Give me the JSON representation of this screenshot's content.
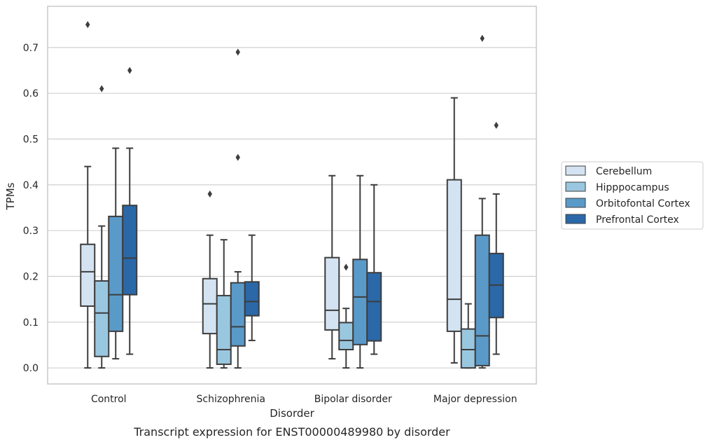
{
  "chart_data": {
    "type": "boxplot",
    "title": "Transcript expression for ENST00000489980 by disorder",
    "xlabel": "Disorder",
    "ylabel": "TPMs",
    "ylim": [
      -0.035,
      0.79
    ],
    "yticks": [
      "0.0",
      "0.1",
      "0.2",
      "0.3",
      "0.4",
      "0.5",
      "0.6",
      "0.7"
    ],
    "grid": "horizontal",
    "legend_position": "right",
    "categories": [
      "Control",
      "Schizophrenia",
      "Bipolar disorder",
      "Major depression"
    ],
    "series": [
      {
        "name": "Cerebellum",
        "color": "#d3e3f1",
        "boxes": [
          {
            "whislo": 0.0,
            "q1": 0.135,
            "median": 0.21,
            "q3": 0.27,
            "whishi": 0.44,
            "fliers": [
              0.75
            ]
          },
          {
            "whislo": 0.0,
            "q1": 0.075,
            "median": 0.14,
            "q3": 0.195,
            "whishi": 0.29,
            "fliers": [
              0.38
            ]
          },
          {
            "whislo": 0.02,
            "q1": 0.083,
            "median": 0.126,
            "q3": 0.241,
            "whishi": 0.42,
            "fliers": []
          },
          {
            "whislo": 0.011,
            "q1": 0.08,
            "median": 0.15,
            "q3": 0.411,
            "whishi": 0.59,
            "fliers": []
          }
        ]
      },
      {
        "name": "Hipppocampus",
        "color": "#9ac7e0",
        "boxes": [
          {
            "whislo": 0.0,
            "q1": 0.025,
            "median": 0.12,
            "q3": 0.19,
            "whishi": 0.31,
            "fliers": [
              0.61
            ]
          },
          {
            "whislo": 0.0,
            "q1": 0.008,
            "median": 0.04,
            "q3": 0.158,
            "whishi": 0.28,
            "fliers": []
          },
          {
            "whislo": 0.0,
            "q1": 0.04,
            "median": 0.06,
            "q3": 0.099,
            "whishi": 0.13,
            "fliers": [
              0.22
            ]
          },
          {
            "whislo": 0.0,
            "q1": 0.0,
            "median": 0.04,
            "q3": 0.085,
            "whishi": 0.14,
            "fliers": []
          }
        ]
      },
      {
        "name": "Orbitofontal Cortex",
        "color": "#5a9ac9",
        "boxes": [
          {
            "whislo": 0.02,
            "q1": 0.08,
            "median": 0.16,
            "q3": 0.331,
            "whishi": 0.48,
            "fliers": []
          },
          {
            "whislo": 0.0,
            "q1": 0.048,
            "median": 0.09,
            "q3": 0.186,
            "whishi": 0.21,
            "fliers": [
              0.46,
              0.69
            ]
          },
          {
            "whislo": 0.0,
            "q1": 0.051,
            "median": 0.155,
            "q3": 0.237,
            "whishi": 0.42,
            "fliers": []
          },
          {
            "whislo": 0.0,
            "q1": 0.005,
            "median": 0.07,
            "q3": 0.29,
            "whishi": 0.37,
            "fliers": [
              0.72
            ]
          }
        ]
      },
      {
        "name": "Prefrontal Cortex",
        "color": "#2a68a8",
        "boxes": [
          {
            "whislo": 0.03,
            "q1": 0.16,
            "median": 0.24,
            "q3": 0.355,
            "whishi": 0.48,
            "fliers": [
              0.65
            ]
          },
          {
            "whislo": 0.06,
            "q1": 0.114,
            "median": 0.145,
            "q3": 0.188,
            "whishi": 0.29,
            "fliers": []
          },
          {
            "whislo": 0.03,
            "q1": 0.059,
            "median": 0.145,
            "q3": 0.208,
            "whishi": 0.4,
            "fliers": []
          },
          {
            "whislo": 0.03,
            "q1": 0.11,
            "median": 0.181,
            "q3": 0.25,
            "whishi": 0.38,
            "fliers": [
              0.53
            ]
          }
        ]
      }
    ]
  }
}
